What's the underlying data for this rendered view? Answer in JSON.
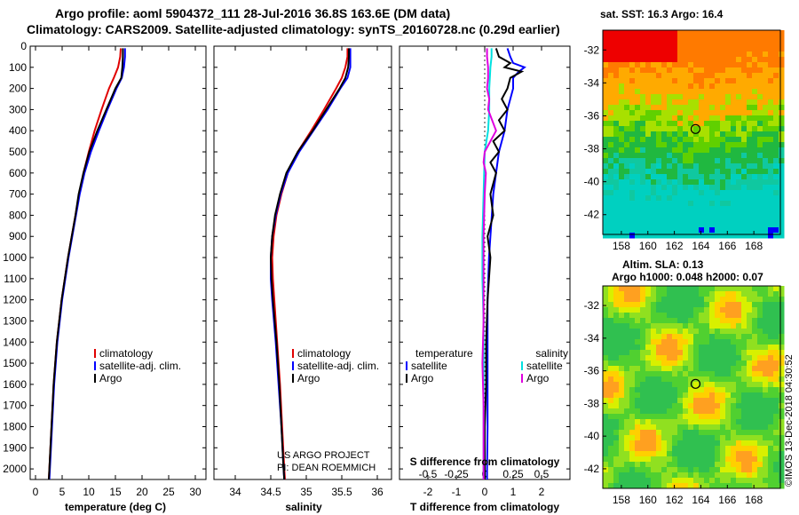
{
  "titles": {
    "line1": "Argo profile: aoml 5904372_111 28-Jul-2016 36.8S 163.6E (DM data)",
    "line2": "Climatology: CARS2009. Satellite-adjusted climatology: synTS_20160728.nc (0.29d earlier)"
  },
  "colors": {
    "climatology": "#e00000",
    "satellite": "#0000ff",
    "argo": "#000000",
    "sat_s": "#00e0e0",
    "clim_s": "#e000e0"
  },
  "chart_data": [
    {
      "id": "temperature",
      "type": "line",
      "xlabel": "temperature (deg C)",
      "xlim": [
        -1,
        32
      ],
      "ylim": [
        2050,
        0
      ],
      "xticks": [
        "0",
        "5",
        "10",
        "15",
        "20",
        "25",
        "30"
      ],
      "xtick_values": [
        0,
        5,
        10,
        15,
        20,
        25,
        30
      ],
      "yticks": [
        "0",
        "100",
        "200",
        "300",
        "400",
        "500",
        "600",
        "700",
        "800",
        "900",
        "1000",
        "1100",
        "1200",
        "1300",
        "1400",
        "1500",
        "1600",
        "1700",
        "1800",
        "1900",
        "2000"
      ],
      "ytick_values": [
        0,
        100,
        200,
        300,
        400,
        500,
        600,
        700,
        800,
        900,
        1000,
        1100,
        1200,
        1300,
        1400,
        1500,
        1600,
        1700,
        1800,
        1900,
        2000
      ],
      "legend": [
        "climatology",
        "satellite-adj. clim.",
        "Argo"
      ],
      "series": [
        {
          "name": "climatology",
          "color": "#e00000",
          "depth": [
            10,
            50,
            100,
            150,
            200,
            300,
            400,
            500,
            600,
            700,
            800,
            900,
            1000,
            1200,
            1400,
            1600,
            1800,
            2000,
            2050
          ],
          "values": [
            16.0,
            15.9,
            15.5,
            14.7,
            13.8,
            12.4,
            11.1,
            10.0,
            9.0,
            8.2,
            7.5,
            6.8,
            6.1,
            4.9,
            4.0,
            3.4,
            3.0,
            2.6,
            2.5
          ]
        },
        {
          "name": "satellite-adj. clim.",
          "color": "#0000ff",
          "depth": [
            10,
            50,
            100,
            150,
            200,
            300,
            400,
            500,
            600,
            700,
            800,
            900,
            1000,
            1200,
            1400,
            1600,
            1800,
            2000,
            2050
          ],
          "values": [
            16.8,
            16.8,
            16.6,
            16.2,
            15.2,
            13.5,
            11.9,
            10.4,
            9.2,
            8.3,
            7.6,
            6.9,
            6.2,
            5.0,
            4.1,
            3.5,
            3.1,
            2.7,
            2.6
          ]
        },
        {
          "name": "Argo",
          "color": "#000000",
          "depth": [
            10,
            50,
            100,
            150,
            200,
            300,
            400,
            500,
            600,
            700,
            800,
            900,
            1000,
            1200,
            1400,
            1600,
            1800,
            2000,
            2050
          ],
          "values": [
            16.4,
            16.4,
            16.3,
            16.1,
            15.0,
            13.3,
            11.6,
            10.1,
            9.0,
            8.1,
            7.5,
            6.8,
            6.1,
            4.9,
            4.0,
            3.4,
            3.0,
            2.6,
            2.5
          ]
        }
      ]
    },
    {
      "id": "salinity",
      "type": "line",
      "xlabel": "salinity",
      "xlim": [
        33.7,
        36.2
      ],
      "ylim": [
        2050,
        0
      ],
      "xticks": [
        "34",
        "34.5",
        "35",
        "35.5",
        "36"
      ],
      "xtick_values": [
        34,
        34.5,
        35,
        35.5,
        36
      ],
      "legend": [
        "climatology",
        "satellite-adj. clim.",
        "Argo"
      ],
      "credit": [
        "US ARGO PROJECT",
        "PI: DEAN ROEMMICH"
      ],
      "series": [
        {
          "name": "climatology",
          "color": "#e00000",
          "depth": [
            10,
            50,
            100,
            150,
            200,
            300,
            400,
            500,
            600,
            700,
            800,
            900,
            1000,
            1100,
            1200,
            1400,
            1600,
            1800,
            2000,
            2050
          ],
          "values": [
            35.58,
            35.58,
            35.55,
            35.5,
            35.42,
            35.25,
            35.07,
            34.88,
            34.74,
            34.65,
            34.58,
            34.54,
            34.52,
            34.53,
            34.55,
            34.59,
            34.63,
            34.66,
            34.69,
            34.7
          ]
        },
        {
          "name": "satellite-adj. clim.",
          "color": "#0000ff",
          "depth": [
            10,
            50,
            100,
            150,
            200,
            300,
            400,
            500,
            600,
            700,
            800,
            900,
            1000,
            1100,
            1200,
            1400,
            1600,
            1800,
            2000,
            2050
          ],
          "values": [
            35.62,
            35.62,
            35.62,
            35.58,
            35.48,
            35.3,
            35.1,
            34.9,
            34.74,
            34.64,
            34.57,
            34.52,
            34.5,
            34.5,
            34.52,
            34.57,
            34.61,
            34.65,
            34.68,
            34.69
          ]
        },
        {
          "name": "Argo",
          "color": "#000000",
          "depth": [
            10,
            50,
            100,
            150,
            200,
            300,
            400,
            500,
            600,
            700,
            800,
            900,
            1000,
            1100,
            1200,
            1400,
            1600,
            1800,
            2000,
            2050
          ],
          "values": [
            35.6,
            35.6,
            35.59,
            35.55,
            35.47,
            35.28,
            35.09,
            34.88,
            34.72,
            34.63,
            34.56,
            34.52,
            34.5,
            34.51,
            34.53,
            34.58,
            34.62,
            34.65,
            34.68,
            34.69
          ]
        }
      ]
    },
    {
      "id": "difference",
      "type": "line",
      "xlabel": "T difference from climatology",
      "s_label": "S difference from climatology",
      "xlim": [
        -3,
        3
      ],
      "ylim": [
        2050,
        0
      ],
      "xticks": [
        "-2",
        "-1",
        "0",
        "1",
        "2"
      ],
      "xtick_values": [
        -2,
        -1,
        0,
        1,
        2
      ],
      "sticks": [
        "-0.5",
        "-0.25",
        "0",
        "0.25",
        "0.5"
      ],
      "stick_values": [
        -0.5,
        -0.25,
        0,
        0.25,
        0.5
      ],
      "legend_headers": [
        "temperature",
        "salinity"
      ],
      "legend": [
        "satellite",
        "Argo",
        "satellite",
        "Argo"
      ],
      "series": [
        {
          "name": "T satellite",
          "color": "#0000ff",
          "depth": [
            10,
            50,
            80,
            100,
            120,
            150,
            200,
            300,
            400,
            500,
            600,
            700,
            800,
            1000,
            1200,
            1400,
            1600,
            1800,
            2000,
            2050
          ],
          "values": [
            0.8,
            0.9,
            1.0,
            1.4,
            1.2,
            1.0,
            1.0,
            0.8,
            0.7,
            0.5,
            0.4,
            0.3,
            0.25,
            0.15,
            0.1,
            0.1,
            0.1,
            0.1,
            0.08,
            0.08
          ]
        },
        {
          "name": "T Argo",
          "color": "#000000",
          "depth": [
            10,
            50,
            80,
            100,
            120,
            150,
            200,
            250,
            300,
            350,
            400,
            450,
            500,
            550,
            600,
            700,
            800,
            900,
            1000,
            1200,
            1400,
            1600,
            1800,
            2000,
            2050
          ],
          "values": [
            0.4,
            0.5,
            0.9,
            0.7,
            1.3,
            0.9,
            0.8,
            0.6,
            0.8,
            0.5,
            0.7,
            0.3,
            0.5,
            0.2,
            0.4,
            0.2,
            0.3,
            0.1,
            0.2,
            0.1,
            0.05,
            0.05,
            0.0,
            0.0,
            0.0
          ]
        },
        {
          "name": "S satellite",
          "color": "#00e0e0",
          "depth": [
            10,
            50,
            100,
            200,
            300,
            400,
            500,
            700,
            900,
            1100,
            1300,
            1500,
            1700,
            1900,
            2050
          ],
          "values": [
            0.06,
            0.06,
            0.05,
            0.04,
            0.04,
            0.03,
            0.0,
            -0.01,
            -0.02,
            -0.02,
            -0.01,
            -0.01,
            -0.01,
            -0.01,
            -0.01
          ]
        },
        {
          "name": "S Argo",
          "color": "#e000e0",
          "depth": [
            10,
            50,
            100,
            150,
            200,
            250,
            300,
            400,
            500,
            550,
            600,
            700,
            900,
            1100,
            1300,
            1500,
            1700,
            1900,
            2050
          ],
          "values": [
            0.02,
            0.02,
            0.03,
            0.03,
            0.02,
            0.04,
            0.03,
            0.1,
            0.0,
            -0.01,
            0.01,
            0.0,
            -0.01,
            -0.01,
            -0.01,
            -0.02,
            -0.01,
            -0.01,
            -0.01
          ]
        }
      ]
    }
  ],
  "maps": {
    "sst": {
      "title": "sat. SST: 16.3 Argo: 16.4",
      "xticks": [
        "158",
        "160",
        "162",
        "164",
        "166",
        "168"
      ],
      "xtick_values": [
        158,
        160,
        162,
        164,
        166,
        168
      ],
      "yticks": [
        "-32",
        "-34",
        "-36",
        "-38",
        "-40",
        "-42"
      ],
      "ytick_values": [
        -32,
        -34,
        -36,
        -38,
        -40,
        -42
      ],
      "lon_range": [
        156.6,
        170.0
      ],
      "lat_range": [
        -43.2,
        -30.8
      ],
      "marker": [
        163.6,
        -36.8
      ]
    },
    "sla": {
      "title1": "Altim. SLA: 0.13",
      "title2": "Argo h1000: 0.048 h2000: 0.07",
      "xticks": [
        "158",
        "160",
        "162",
        "164",
        "166",
        "168"
      ],
      "xtick_values": [
        158,
        160,
        162,
        164,
        166,
        168
      ],
      "yticks": [
        "-32",
        "-34",
        "-36",
        "-38",
        "-40",
        "-42"
      ],
      "ytick_values": [
        -32,
        -34,
        -36,
        -38,
        -40,
        -42
      ],
      "lon_range": [
        156.6,
        170.0
      ],
      "lat_range": [
        -43.2,
        -30.8
      ],
      "marker": [
        163.6,
        -36.8
      ]
    }
  },
  "footer": {
    "imos": "©IMOS 13-Dec-2018 04:30:52"
  }
}
